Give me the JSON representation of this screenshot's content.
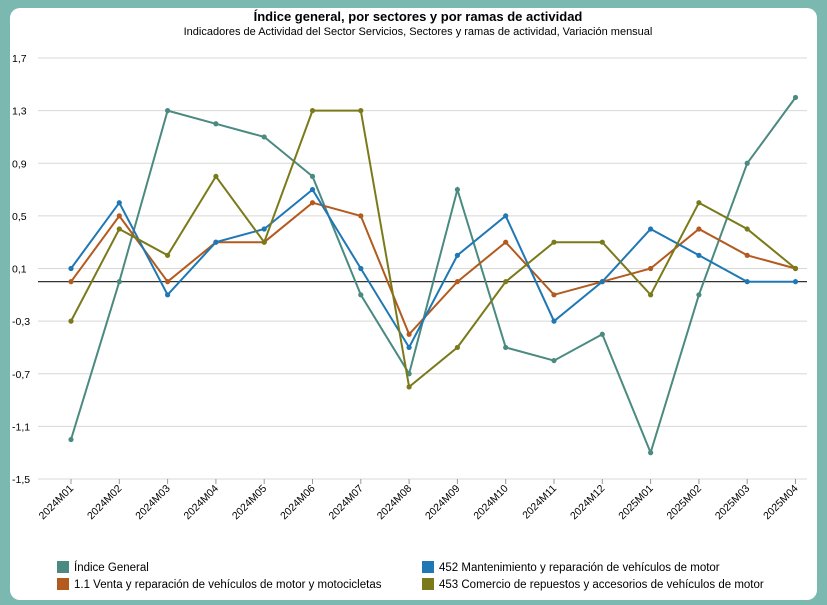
{
  "chart_data": {
    "type": "line",
    "title": "Índice general, por sectores y por ramas de actividad",
    "subtitle": "Indicadores de Actividad del Sector Servicios, Sectores y ramas de actividad, Variación mensual",
    "xlabel": "",
    "ylabel": "",
    "ylim": [
      -1.5,
      1.7
    ],
    "yticks": [
      "1,7",
      "1,3",
      "0,9",
      "0,5",
      "0,1",
      "-0,3",
      "-0,7",
      "-1,1",
      "-1,5"
    ],
    "ytick_values": [
      1.7,
      1.3,
      0.9,
      0.5,
      0.1,
      -0.3,
      -0.7,
      -1.1,
      -1.5
    ],
    "reference_line": 0,
    "grid": "horizontal",
    "legend_position": "bottom",
    "categories": [
      "2024M01",
      "2024M02",
      "2024M03",
      "2024M04",
      "2024M05",
      "2024M06",
      "2024M07",
      "2024M08",
      "2024M09",
      "2024M10",
      "2024M11",
      "2024M12",
      "2025M01",
      "2025M02",
      "2025M03",
      "2025M04"
    ],
    "series": [
      {
        "name": "Índice General",
        "color": "#4a8a80",
        "values": [
          -1.2,
          0.0,
          1.3,
          1.2,
          1.1,
          0.8,
          -0.1,
          -0.7,
          0.7,
          -0.5,
          -0.6,
          -0.4,
          -1.3,
          -0.1,
          0.9,
          1.4
        ]
      },
      {
        "name": "1.1 Venta y reparación de vehículos de motor y motocicletas",
        "color": "#b35a1f",
        "values": [
          0.0,
          0.5,
          0.0,
          0.3,
          0.3,
          0.6,
          0.5,
          -0.4,
          0.0,
          0.3,
          -0.1,
          0.0,
          0.1,
          0.4,
          0.2,
          0.1
        ]
      },
      {
        "name": "452 Mantenimiento y reparación de vehículos de motor",
        "color": "#1f77b4",
        "values": [
          0.1,
          0.6,
          -0.1,
          0.3,
          0.4,
          0.7,
          0.1,
          -0.5,
          0.2,
          0.5,
          -0.3,
          0.0,
          0.4,
          0.2,
          0.0,
          0.0
        ]
      },
      {
        "name": "453 Comercio de repuestos y accesorios de vehículos de motor",
        "color": "#7a7a1a",
        "values": [
          -0.3,
          0.4,
          0.2,
          0.8,
          0.3,
          1.3,
          1.3,
          -0.8,
          -0.5,
          0.0,
          0.3,
          0.3,
          -0.1,
          0.6,
          0.4,
          0.1
        ]
      }
    ]
  }
}
